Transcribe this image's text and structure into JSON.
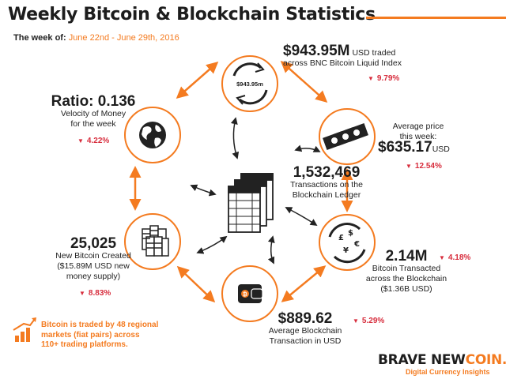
{
  "header": {
    "title": "Weekly Bitcoin & Blockchain Statistics",
    "week_label": "The week of:",
    "week_range": "June 22nd - June 29th, 2016"
  },
  "colors": {
    "accent": "#f47b20",
    "negative": "#d72c3c",
    "text": "#222222"
  },
  "center": {
    "icon": "ledger-pages-icon",
    "value": "1,532,469",
    "line1": "Transactions on the",
    "line2": "Blockchain Ledger"
  },
  "stats": {
    "usd_traded": {
      "icon": "cycle-arrows-icon",
      "icon_text": "$943.95m",
      "value": "$943.95M",
      "unit": "USD traded",
      "line2": "across BNC Bitcoin Liquid Index",
      "change": "9.79%"
    },
    "average_price": {
      "icon": "banknotes-icon",
      "line1": "Average price",
      "line2": "this week:",
      "value": "$635.17",
      "unit": "USD",
      "change": "12.54%"
    },
    "bitcoin_transacted": {
      "icon": "currency-exchange-icon",
      "value": "2.14M",
      "line1": "Bitcoin Transacted",
      "line2": "across the Blockchain",
      "line3": "($1.36B USD)",
      "change": "4.18%"
    },
    "average_transaction": {
      "icon": "bitcoin-wallet-icon",
      "value": "$889.62",
      "line1": "Average Blockchain",
      "line2": "Transaction in USD",
      "change": "5.29%"
    },
    "new_bitcoin": {
      "icon": "coin-stacks-icon",
      "value": "25,025",
      "line1": "New Bitcoin Created",
      "line2": "($15.89M USD new",
      "line3": "money supply)",
      "change": "8.83%"
    },
    "ratio": {
      "icon": "globe-icon",
      "value": "Ratio: 0.136",
      "line1": "Velocity of Money",
      "line2": "for the week",
      "change": "4.22%"
    }
  },
  "footnote": {
    "icon": "bar-chart-arrow-icon",
    "line1": "Bitcoin is traded by 48 regional",
    "line2": "markets (fiat pairs) across",
    "line3": "110+ trading platforms."
  },
  "brand": {
    "name_part1": "BRAVE NEW",
    "name_part2": "COIN.",
    "tagline": "Digital Currency Insights"
  }
}
